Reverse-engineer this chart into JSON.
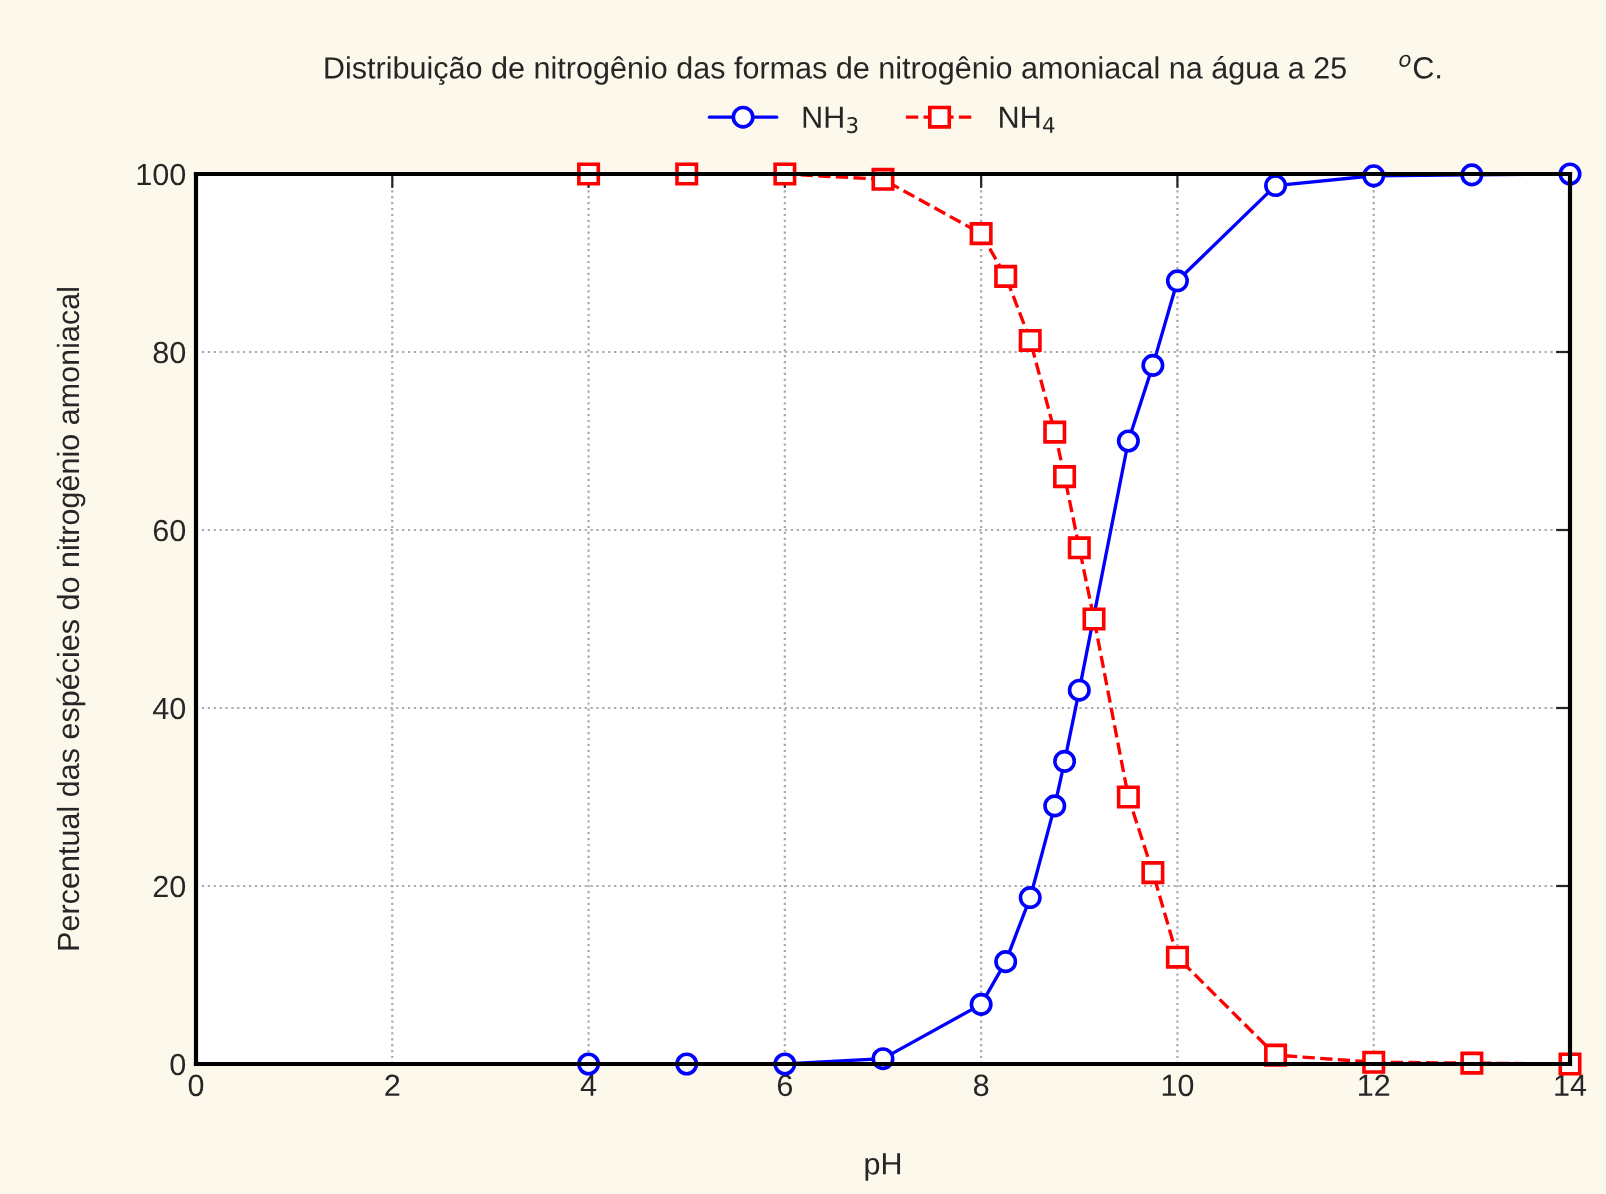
{
  "chart_data": {
    "type": "line",
    "title": "Distribuição de nitrogênio das formas de nitrogênio amoniacal na água a 25      $^{o}$C.",
    "xlabel": "pH",
    "ylabel": "Percentual das espécies do nitrogênio amoniacal",
    "x": [
      4,
      5,
      6,
      7,
      8,
      8.25,
      8.5,
      8.75,
      8.85,
      9,
      9.15,
      9.5,
      9.75,
      10,
      11,
      12,
      13,
      14
    ],
    "series": [
      {
        "name": "NH$_{3}$",
        "color": "#0000ff",
        "marker": "circle",
        "line_style": "solid",
        "x": [
          4,
          5,
          6,
          7,
          8,
          8.25,
          8.5,
          8.75,
          8.85,
          9,
          9.5,
          9.75,
          10,
          11,
          12,
          13,
          14
        ],
        "values": [
          0,
          0,
          0,
          0.6,
          6.7,
          11.5,
          18.7,
          29,
          34,
          42,
          70,
          78.5,
          88,
          98.7,
          99.8,
          99.9,
          100
        ]
      },
      {
        "name": "NH$_{4}$",
        "color": "#ff0000",
        "marker": "square",
        "line_style": "dashed",
        "values": [
          100,
          100,
          100,
          99.4,
          93.3,
          88.5,
          81.3,
          71,
          66,
          58,
          50,
          30,
          21.5,
          12,
          1,
          0.2,
          0.1,
          0
        ]
      }
    ],
    "xlim": [
      0,
      14
    ],
    "xticks": [
      0,
      2,
      4,
      6,
      8,
      10,
      12,
      14
    ],
    "ylim": [
      0,
      100
    ],
    "yticks": [
      0,
      20,
      40,
      60,
      80,
      100
    ],
    "grid": true,
    "legend": "top"
  }
}
